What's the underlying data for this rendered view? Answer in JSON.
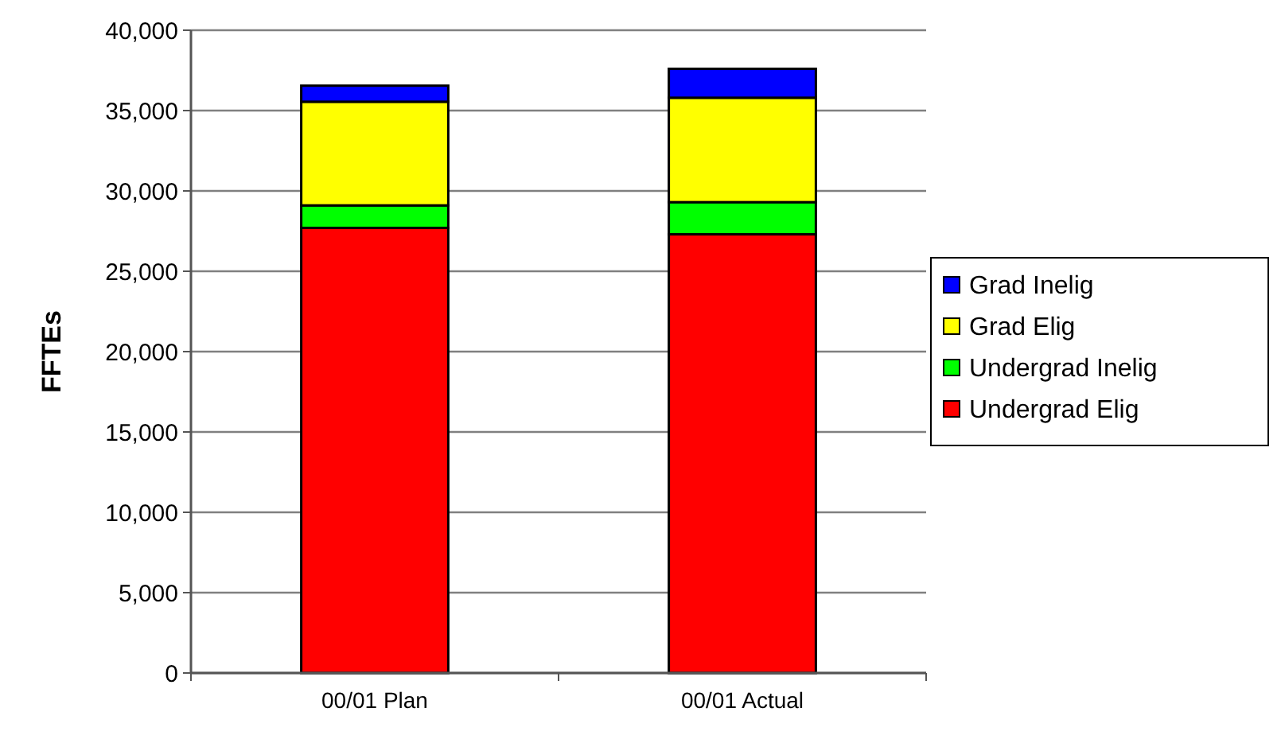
{
  "chart_data": {
    "type": "bar",
    "stacked": true,
    "ylabel": "FFTEs",
    "categories": [
      "00/01 Plan",
      "00/01 Actual"
    ],
    "series": [
      {
        "name": "Undergrad Elig",
        "color": "#ff0000",
        "values": [
          27700,
          27300
        ]
      },
      {
        "name": "Undergrad Inelig",
        "color": "#00ff00",
        "values": [
          1400,
          2000
        ]
      },
      {
        "name": "Grad Elig",
        "color": "#ffff00",
        "values": [
          6450,
          6500
        ]
      },
      {
        "name": "Grad Inelig",
        "color": "#0000ff",
        "values": [
          1000,
          1800
        ]
      }
    ],
    "ylim": [
      0,
      40000
    ],
    "yticks": [
      {
        "value": 0,
        "label": "0"
      },
      {
        "value": 5000,
        "label": "5,000"
      },
      {
        "value": 10000,
        "label": "10,000"
      },
      {
        "value": 15000,
        "label": "15,000"
      },
      {
        "value": 20000,
        "label": "20,000"
      },
      {
        "value": 25000,
        "label": "25,000"
      },
      {
        "value": 30000,
        "label": "30,000"
      },
      {
        "value": 35000,
        "label": "35,000"
      },
      {
        "value": 40000,
        "label": "40,000"
      }
    ],
    "grid": "y",
    "legend": "right"
  }
}
